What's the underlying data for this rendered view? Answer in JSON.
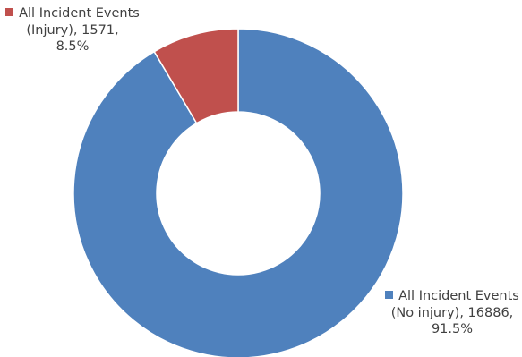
{
  "chart_data": {
    "type": "pie",
    "style": "donut",
    "title": "",
    "slices": [
      {
        "label": "All Incident Events (No injury)",
        "label_lines": [
          "All Incident Events",
          "(No injury), 16886,",
          "91.5%"
        ],
        "value": 16886,
        "percent": "91.5%",
        "color": "#4f81bd"
      },
      {
        "label": "All Incident Events (Injury)",
        "label_lines": [
          "All Incident Events",
          "(Injury), 1571,",
          "8.5%"
        ],
        "value": 1571,
        "percent": "8.5%",
        "color": "#c0504d"
      }
    ],
    "start_angle": "12 o'clock",
    "direction": "clockwise",
    "legend": "none (data labels)"
  }
}
